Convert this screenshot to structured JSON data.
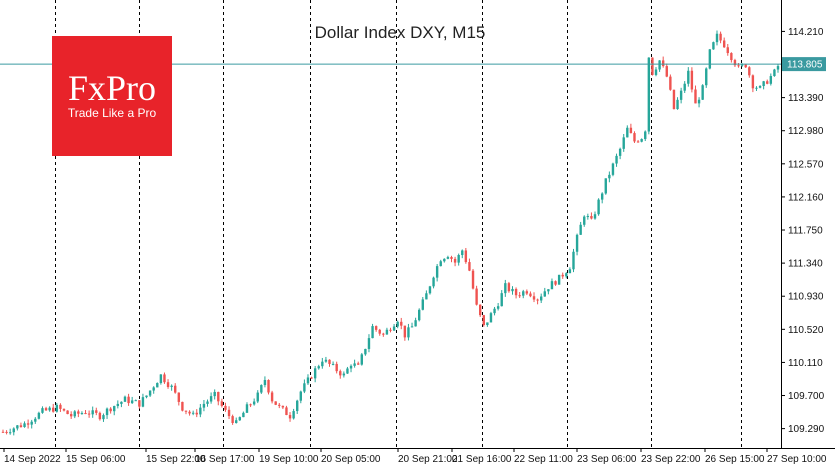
{
  "chart_data": {
    "type": "candlestick",
    "title": "Dollar Index DXY, M15",
    "ylim": [
      109.05,
      114.5
    ],
    "y_ticks": [
      "114.210",
      "113.390",
      "112.980",
      "112.570",
      "112.160",
      "111.750",
      "111.340",
      "110.930",
      "110.520",
      "110.110",
      "109.700",
      "109.290"
    ],
    "current_price": "113.805",
    "x_ticks": [
      "14 Sep 2022",
      "15 Sep 06:00",
      "15 Sep 22:00",
      "16 Sep 17:00",
      "19 Sep 10:00",
      "20 Sep 05:00",
      "20 Sep 21:00",
      "21 Sep 16:00",
      "22 Sep 11:00",
      "23 Sep 06:00",
      "23 Sep 22:00",
      "26 Sep 15:00",
      "27 Sep 10:00"
    ],
    "period_separators": [
      "15 Sep",
      "16 Sep",
      "19 Sep",
      "20 Sep",
      "21 Sep",
      "22 Sep",
      "23 Sep",
      "26 Sep",
      "27 Sep"
    ],
    "grid": false,
    "bull_color": "#26a69a",
    "bear_color": "#ef5350",
    "price_line_color": "#3a9aa0",
    "path_points": [
      [
        0,
        109.25
      ],
      [
        6,
        109.35
      ],
      [
        11,
        109.5
      ],
      [
        15,
        109.55
      ],
      [
        19,
        109.45
      ],
      [
        23,
        109.5
      ],
      [
        27,
        109.45
      ],
      [
        30,
        109.55
      ],
      [
        34,
        109.65
      ],
      [
        38,
        109.6
      ],
      [
        40,
        109.7
      ],
      [
        44,
        109.95
      ],
      [
        47,
        109.8
      ],
      [
        50,
        109.55
      ],
      [
        53,
        109.45
      ],
      [
        56,
        109.6
      ],
      [
        59,
        109.7
      ],
      [
        62,
        109.5
      ],
      [
        65,
        109.35
      ],
      [
        68,
        109.55
      ],
      [
        71,
        109.7
      ],
      [
        73,
        109.9
      ],
      [
        75,
        109.65
      ],
      [
        77,
        109.55
      ],
      [
        80,
        109.45
      ],
      [
        83,
        109.75
      ],
      [
        86,
        109.95
      ],
      [
        89,
        110.15
      ],
      [
        92,
        110.05
      ],
      [
        95,
        109.95
      ],
      [
        97,
        110.1
      ],
      [
        99,
        110.05
      ],
      [
        101,
        110.3
      ],
      [
        103,
        110.55
      ],
      [
        106,
        110.45
      ],
      [
        108,
        110.55
      ],
      [
        110,
        110.65
      ],
      [
        112,
        110.45
      ],
      [
        114,
        110.55
      ],
      [
        116,
        110.75
      ],
      [
        118,
        110.95
      ],
      [
        120,
        111.2
      ],
      [
        122,
        111.4
      ],
      [
        124,
        111.45
      ],
      [
        126,
        111.35
      ],
      [
        128,
        111.5
      ],
      [
        130,
        111.25
      ],
      [
        132,
        110.8
      ],
      [
        134,
        110.55
      ],
      [
        136,
        110.7
      ],
      [
        138,
        110.85
      ],
      [
        140,
        111.05
      ],
      [
        143,
        110.95
      ],
      [
        146,
        111.0
      ],
      [
        149,
        110.9
      ],
      [
        152,
        111.05
      ],
      [
        155,
        111.15
      ],
      [
        158,
        111.3
      ],
      [
        160,
        111.65
      ],
      [
        162,
        111.95
      ],
      [
        164,
        111.85
      ],
      [
        166,
        112.1
      ],
      [
        168,
        112.35
      ],
      [
        170,
        112.55
      ],
      [
        172,
        112.75
      ],
      [
        174,
        113.0
      ],
      [
        176,
        112.85
      ],
      [
        178,
        112.9
      ],
      [
        179,
        113.0
      ],
      [
        180,
        113.9
      ],
      [
        181,
        113.7
      ],
      [
        183,
        113.85
      ],
      [
        185,
        113.65
      ],
      [
        187,
        113.25
      ],
      [
        189,
        113.45
      ],
      [
        191,
        113.7
      ],
      [
        193,
        113.3
      ],
      [
        195,
        113.5
      ],
      [
        197,
        113.95
      ],
      [
        199,
        114.15
      ],
      [
        201,
        114.05
      ],
      [
        203,
        113.9
      ],
      [
        205,
        113.75
      ],
      [
        207,
        113.8
      ],
      [
        209,
        113.55
      ],
      [
        211,
        113.5
      ],
      [
        213,
        113.6
      ],
      [
        215,
        113.7
      ],
      [
        216,
        113.78
      ]
    ]
  }
}
